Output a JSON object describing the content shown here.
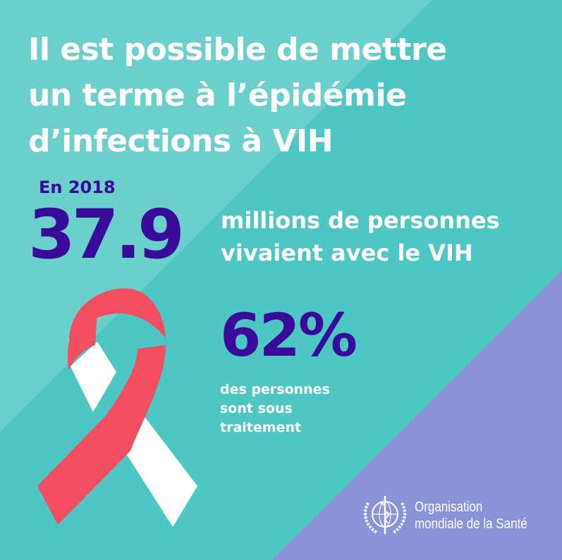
{
  "colors": {
    "teal": "#4ec6c4",
    "teal_light": "#6bcfcc",
    "purple_bg": "#8a93d6",
    "indigo_text": "#3a0a9a",
    "ribbon_red": "#f24d60",
    "white": "#ffffff"
  },
  "title": {
    "line1": "Il est possible de mettre",
    "line2": "un terme à l’épidémie",
    "line3": "d’infections à VIH"
  },
  "stat1": {
    "year_label": "En 2018",
    "value": "37.9",
    "desc_line1": "millions de personnes",
    "desc_line2": "vivaient avec le VIH"
  },
  "stat2": {
    "value": "62%",
    "desc_line1": "des personnes",
    "desc_line2": "sont sous",
    "desc_line3": "traitement"
  },
  "logo": {
    "icon": "who-emblem-icon",
    "line1": "Organisation",
    "line2": "mondiale de la Santé"
  },
  "ribbon": {
    "icon": "awareness-ribbon-icon"
  }
}
